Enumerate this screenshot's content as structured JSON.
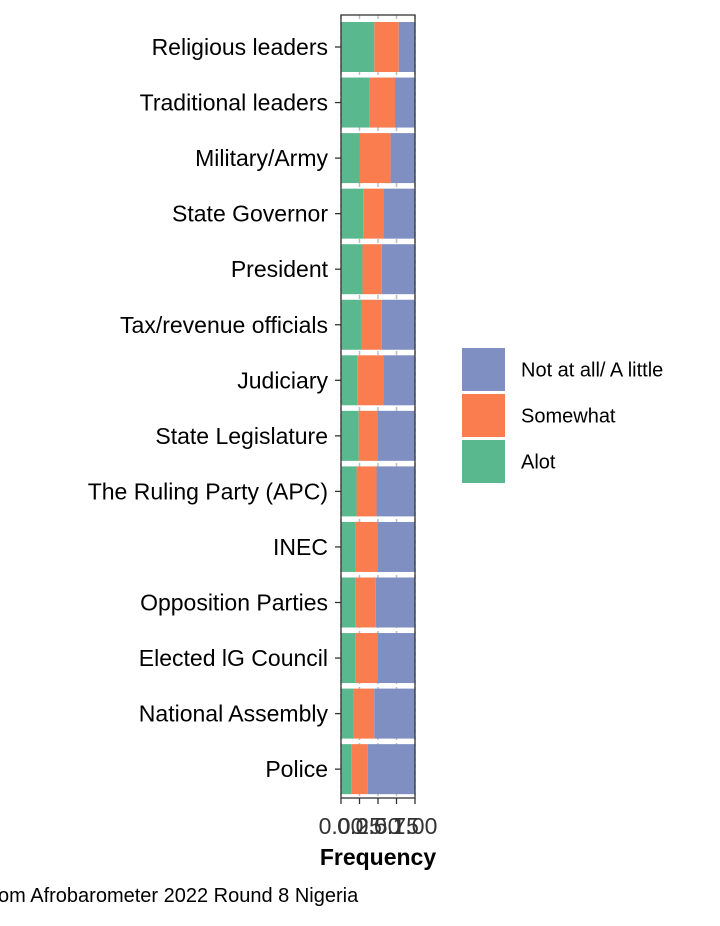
{
  "chart_data": {
    "type": "bar",
    "orientation": "horizontal",
    "stacked": true,
    "normalized": true,
    "categories": [
      "Religious leaders",
      "Traditional leaders",
      "Military/Army",
      "State Governor",
      "President",
      "Tax/revenue officials",
      "Judiciary",
      "State Legislature",
      "The Ruling Party (APC)",
      "INEC",
      "Opposition Parties",
      "Elected lG Council",
      "National Assembly",
      "Police"
    ],
    "series": [
      {
        "name": "Alot",
        "color": "#5ab88f",
        "values": [
          0.45,
          0.39,
          0.25,
          0.3,
          0.29,
          0.27,
          0.22,
          0.24,
          0.21,
          0.19,
          0.2,
          0.2,
          0.17,
          0.14
        ]
      },
      {
        "name": "Somewhat",
        "color": "#fa7d50",
        "values": [
          0.33,
          0.34,
          0.42,
          0.27,
          0.26,
          0.28,
          0.35,
          0.26,
          0.27,
          0.31,
          0.27,
          0.29,
          0.28,
          0.22
        ]
      },
      {
        "name": "Not at all/ A little",
        "color": "#7f8fc2",
        "values": [
          0.22,
          0.27,
          0.33,
          0.43,
          0.45,
          0.45,
          0.43,
          0.5,
          0.52,
          0.5,
          0.53,
          0.51,
          0.55,
          0.64
        ]
      }
    ],
    "legend_order": [
      "Not at all/ A little",
      "Somewhat",
      "Alot"
    ],
    "legend_position": "right",
    "xlabel": "Frequency",
    "ylabel": "",
    "xlim": [
      0,
      1
    ],
    "xticks": [
      0.0,
      0.25,
      0.5,
      0.75,
      1.0
    ],
    "xtick_labels": [
      "0.00",
      "0.25",
      "0.50",
      "0.75",
      "1.00"
    ],
    "grid": true,
    "caption": "om Afrobarometer 2022 Round 8 Nigeria"
  }
}
